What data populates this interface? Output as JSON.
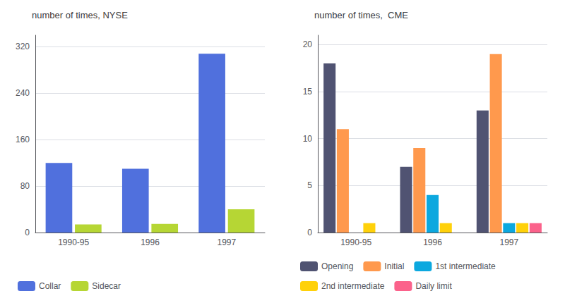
{
  "chart_data": [
    {
      "type": "bar",
      "title": "number of times, NYSE",
      "categories": [
        "1990-95",
        "1996",
        "1997"
      ],
      "series": [
        {
          "name": "Collar",
          "values": [
            120,
            110,
            308
          ]
        },
        {
          "name": "Sidecar",
          "values": [
            14,
            15,
            40
          ]
        }
      ],
      "ylim": [
        0,
        340
      ],
      "yticks": [
        0,
        80,
        160,
        240,
        320
      ],
      "grid": true,
      "legend": "bottom"
    },
    {
      "type": "bar",
      "title": "number of times,  CME",
      "categories": [
        "1990-95",
        "1996",
        "1997"
      ],
      "series": [
        {
          "name": "Opening",
          "values": [
            18,
            7,
            13
          ]
        },
        {
          "name": "Initial",
          "values": [
            11,
            9,
            19
          ]
        },
        {
          "name": "1st intermediate",
          "values": [
            0,
            4,
            1
          ]
        },
        {
          "name": "2nd intermediate",
          "values": [
            1,
            1,
            1
          ]
        },
        {
          "name": "Daily limit",
          "values": [
            0,
            0,
            1
          ]
        }
      ],
      "ylim": [
        0,
        21
      ],
      "yticks": [
        0,
        5,
        10,
        15,
        20
      ],
      "grid": true,
      "legend": "bottom"
    }
  ]
}
